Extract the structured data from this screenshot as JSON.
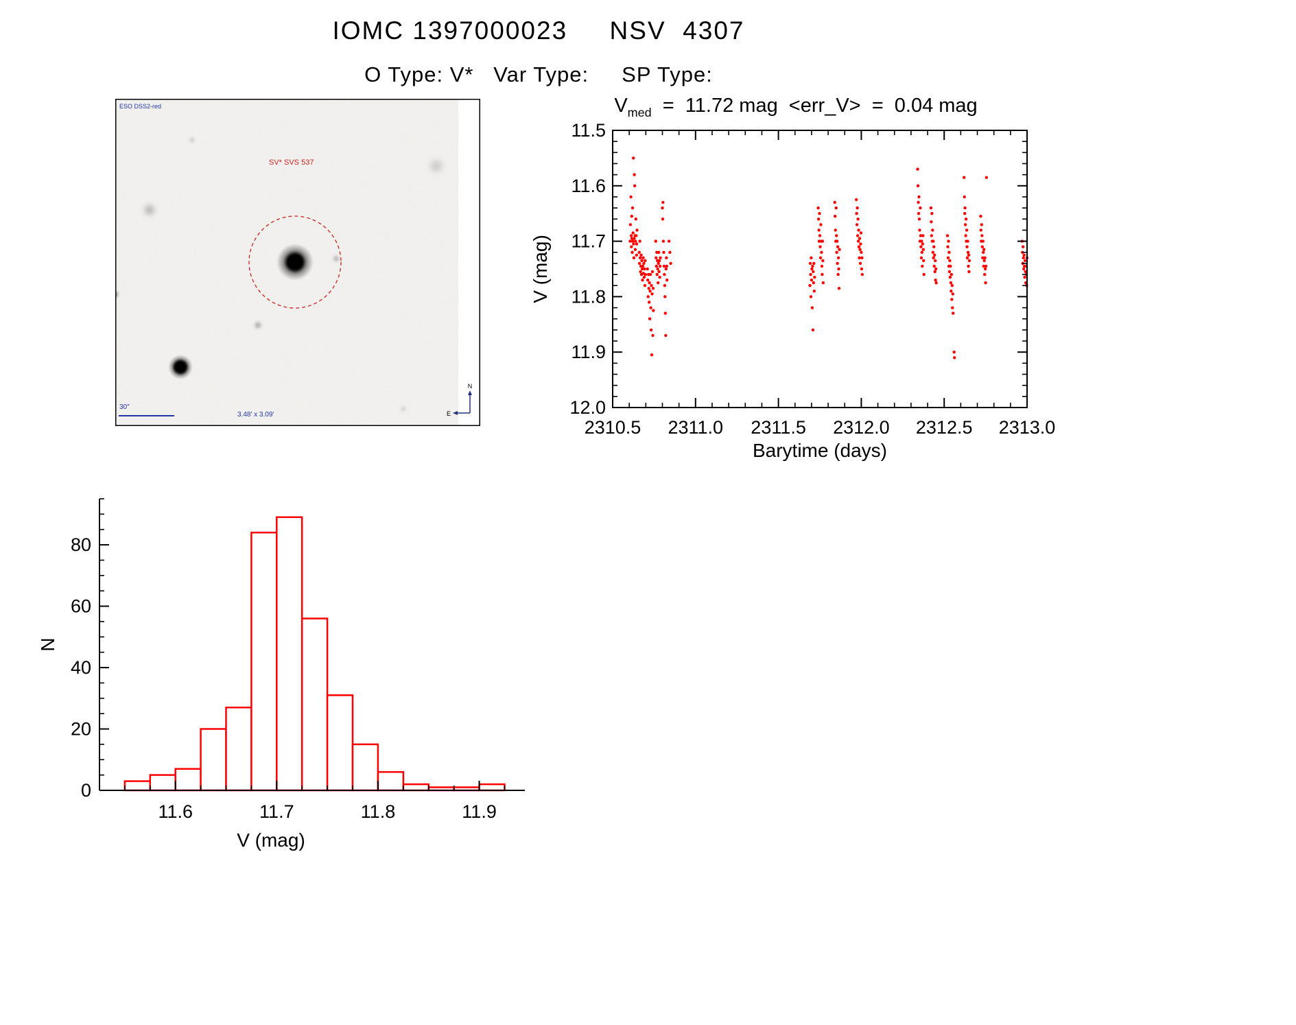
{
  "page": {
    "title": "IOMC 1397000023     NSV  4307",
    "subtitle": "O Type: V*   Var Type:     SP Type:"
  },
  "finding_chart": {
    "survey_label": "ESO DSS2-red",
    "star_label": "SV* SVS 537",
    "scale_label": "30\"",
    "fov_label": "3.48' x 3.09'",
    "compass_north": "N",
    "compass_east": "E"
  },
  "chart_data": [
    {
      "id": "lightcurve",
      "type": "scatter",
      "title": {
        "prefix": "V",
        "sub": "med",
        "rest": "  =  11.72 mag  <err_V>  =  0.04 mag"
      },
      "xlabel": "Barytime (days)",
      "ylabel": "V (mag)",
      "xlim": [
        2310.5,
        2313.0
      ],
      "ylim": [
        11.5,
        12.0
      ],
      "y_direction": "magnitude-increasing-downward",
      "xticks": [
        2310.5,
        2311.0,
        2311.5,
        2312.0,
        2312.5,
        2313.0
      ],
      "xtick_labels": [
        "2310.5",
        "2311.0",
        "2311.5",
        "2312.0",
        "2312.5",
        "2313.0"
      ],
      "yticks": [
        11.5,
        11.6,
        11.7,
        11.8,
        11.9,
        12.0
      ],
      "ytick_labels": [
        "11.5",
        "11.6",
        "11.7",
        "11.8",
        "11.9",
        "12.0"
      ],
      "x_minor_step": 0.1,
      "y_minor_step": 0.02,
      "marker_color": "#ff0000",
      "points": [
        [
          2310.605,
          11.7
        ],
        [
          2310.607,
          11.67
        ],
        [
          2310.61,
          11.62
        ],
        [
          2310.612,
          11.69
        ],
        [
          2310.613,
          11.71
        ],
        [
          2310.615,
          11.655
        ],
        [
          2310.616,
          11.695
        ],
        [
          2310.618,
          11.72
        ],
        [
          2310.62,
          11.64
        ],
        [
          2310.621,
          11.7
        ],
        [
          2310.623,
          11.685
        ],
        [
          2310.625,
          11.55
        ],
        [
          2310.626,
          11.705
        ],
        [
          2310.628,
          11.73
        ],
        [
          2310.63,
          11.695
        ],
        [
          2310.631,
          11.58
        ],
        [
          2310.633,
          11.6
        ],
        [
          2310.635,
          11.69
        ],
        [
          2310.636,
          11.715
        ],
        [
          2310.638,
          11.7
        ],
        [
          2310.64,
          11.66
        ],
        [
          2310.642,
          11.69
        ],
        [
          2310.644,
          11.725
        ],
        [
          2310.645,
          11.705
        ],
        [
          2310.647,
          11.68
        ],
        [
          2310.66,
          11.72
        ],
        [
          2310.662,
          11.74
        ],
        [
          2310.664,
          11.7
        ],
        [
          2310.666,
          11.73
        ],
        [
          2310.668,
          11.755
        ],
        [
          2310.67,
          11.745
        ],
        [
          2310.672,
          11.725
        ],
        [
          2310.674,
          11.76
        ],
        [
          2310.676,
          11.735
        ],
        [
          2310.678,
          11.75
        ],
        [
          2310.68,
          11.77
        ],
        [
          2310.682,
          11.745
        ],
        [
          2310.684,
          11.73
        ],
        [
          2310.686,
          11.758
        ],
        [
          2310.688,
          11.74
        ],
        [
          2310.69,
          11.765
        ],
        [
          2310.692,
          11.75
        ],
        [
          2310.694,
          11.78
        ],
        [
          2310.696,
          11.735
        ],
        [
          2310.698,
          11.76
        ],
        [
          2310.71,
          11.75
        ],
        [
          2310.712,
          11.77
        ],
        [
          2310.714,
          11.8
        ],
        [
          2310.716,
          11.76
        ],
        [
          2310.718,
          11.785
        ],
        [
          2310.72,
          11.81
        ],
        [
          2310.722,
          11.775
        ],
        [
          2310.724,
          11.84
        ],
        [
          2310.726,
          11.79
        ],
        [
          2310.728,
          11.76
        ],
        [
          2310.73,
          11.82
        ],
        [
          2310.732,
          11.86
        ],
        [
          2310.734,
          11.78
        ],
        [
          2310.736,
          11.905
        ],
        [
          2310.738,
          11.795
        ],
        [
          2310.74,
          11.755
        ],
        [
          2310.742,
          11.87
        ],
        [
          2310.744,
          11.785
        ],
        [
          2310.746,
          11.825
        ],
        [
          2310.76,
          11.7
        ],
        [
          2310.762,
          11.73
        ],
        [
          2310.764,
          11.745
        ],
        [
          2310.766,
          11.72
        ],
        [
          2310.768,
          11.76
        ],
        [
          2310.77,
          11.735
        ],
        [
          2310.772,
          11.75
        ],
        [
          2310.774,
          11.775
        ],
        [
          2310.776,
          11.74
        ],
        [
          2310.778,
          11.72
        ],
        [
          2310.78,
          11.755
        ],
        [
          2310.782,
          11.735
        ],
        [
          2310.784,
          11.765
        ],
        [
          2310.786,
          11.745
        ],
        [
          2310.788,
          11.73
        ],
        [
          2310.8,
          11.64
        ],
        [
          2310.802,
          11.66
        ],
        [
          2310.804,
          11.63
        ],
        [
          2310.806,
          11.7
        ],
        [
          2310.808,
          11.72
        ],
        [
          2310.81,
          11.745
        ],
        [
          2310.812,
          11.76
        ],
        [
          2310.814,
          11.78
        ],
        [
          2310.816,
          11.8
        ],
        [
          2310.818,
          11.83
        ],
        [
          2310.82,
          11.87
        ],
        [
          2310.822,
          11.75
        ],
        [
          2310.824,
          11.73
        ],
        [
          2310.826,
          11.745
        ],
        [
          2310.828,
          11.77
        ],
        [
          2310.84,
          11.7
        ],
        [
          2310.845,
          11.72
        ],
        [
          2310.85,
          11.74
        ],
        [
          2311.69,
          11.78
        ],
        [
          2311.692,
          11.74
        ],
        [
          2311.694,
          11.76
        ],
        [
          2311.696,
          11.8
        ],
        [
          2311.698,
          11.73
        ],
        [
          2311.7,
          11.77
        ],
        [
          2311.702,
          11.75
        ],
        [
          2311.704,
          11.82
        ],
        [
          2311.706,
          11.745
        ],
        [
          2311.708,
          11.86
        ],
        [
          2311.71,
          11.755
        ],
        [
          2311.712,
          11.775
        ],
        [
          2311.714,
          11.74
        ],
        [
          2311.716,
          11.79
        ],
        [
          2311.718,
          11.765
        ],
        [
          2311.74,
          11.64
        ],
        [
          2311.742,
          11.66
        ],
        [
          2311.744,
          11.68
        ],
        [
          2311.746,
          11.7
        ],
        [
          2311.748,
          11.65
        ],
        [
          2311.75,
          11.69
        ],
        [
          2311.752,
          11.71
        ],
        [
          2311.754,
          11.73
        ],
        [
          2311.756,
          11.67
        ],
        [
          2311.758,
          11.7
        ],
        [
          2311.76,
          11.72
        ],
        [
          2311.762,
          11.745
        ],
        [
          2311.764,
          11.76
        ],
        [
          2311.766,
          11.7
        ],
        [
          2311.768,
          11.735
        ],
        [
          2311.77,
          11.775
        ],
        [
          2311.84,
          11.63
        ],
        [
          2311.842,
          11.655
        ],
        [
          2311.844,
          11.68
        ],
        [
          2311.846,
          11.7
        ],
        [
          2311.848,
          11.64
        ],
        [
          2311.85,
          11.69
        ],
        [
          2311.852,
          11.72
        ],
        [
          2311.854,
          11.7
        ],
        [
          2311.856,
          11.74
        ],
        [
          2311.858,
          11.71
        ],
        [
          2311.86,
          11.76
        ],
        [
          2311.862,
          11.73
        ],
        [
          2311.864,
          11.75
        ],
        [
          2311.866,
          11.785
        ],
        [
          2311.868,
          11.715
        ],
        [
          2311.97,
          11.625
        ],
        [
          2311.972,
          11.65
        ],
        [
          2311.974,
          11.67
        ],
        [
          2311.976,
          11.64
        ],
        [
          2311.978,
          11.69
        ],
        [
          2311.98,
          11.66
        ],
        [
          2311.982,
          11.7
        ],
        [
          2311.984,
          11.68
        ],
        [
          2311.986,
          11.71
        ],
        [
          2311.988,
          11.73
        ],
        [
          2311.99,
          11.695
        ],
        [
          2311.992,
          11.715
        ],
        [
          2311.994,
          11.74
        ],
        [
          2311.996,
          11.705
        ],
        [
          2311.998,
          11.685
        ],
        [
          2312.0,
          11.72
        ],
        [
          2312.002,
          11.75
        ],
        [
          2312.004,
          11.73
        ],
        [
          2312.006,
          11.76
        ],
        [
          2312.34,
          11.57
        ],
        [
          2312.342,
          11.6
        ],
        [
          2312.344,
          11.63
        ],
        [
          2312.346,
          11.65
        ],
        [
          2312.348,
          11.62
        ],
        [
          2312.35,
          11.66
        ],
        [
          2312.352,
          11.68
        ],
        [
          2312.354,
          11.7
        ],
        [
          2312.356,
          11.64
        ],
        [
          2312.358,
          11.69
        ],
        [
          2312.36,
          11.71
        ],
        [
          2312.362,
          11.73
        ],
        [
          2312.364,
          11.7
        ],
        [
          2312.366,
          11.72
        ],
        [
          2312.368,
          11.745
        ],
        [
          2312.37,
          11.705
        ],
        [
          2312.372,
          11.69
        ],
        [
          2312.374,
          11.715
        ],
        [
          2312.376,
          11.735
        ],
        [
          2312.378,
          11.76
        ],
        [
          2312.42,
          11.64
        ],
        [
          2312.422,
          11.665
        ],
        [
          2312.424,
          11.69
        ],
        [
          2312.426,
          11.65
        ],
        [
          2312.428,
          11.7
        ],
        [
          2312.43,
          11.68
        ],
        [
          2312.432,
          11.72
        ],
        [
          2312.434,
          11.7
        ],
        [
          2312.436,
          11.73
        ],
        [
          2312.438,
          11.71
        ],
        [
          2312.44,
          11.745
        ],
        [
          2312.442,
          11.725
        ],
        [
          2312.444,
          11.755
        ],
        [
          2312.446,
          11.735
        ],
        [
          2312.448,
          11.77
        ],
        [
          2312.45,
          11.75
        ],
        [
          2312.452,
          11.775
        ],
        [
          2312.52,
          11.69
        ],
        [
          2312.522,
          11.71
        ],
        [
          2312.524,
          11.73
        ],
        [
          2312.526,
          11.7
        ],
        [
          2312.528,
          11.745
        ],
        [
          2312.53,
          11.72
        ],
        [
          2312.532,
          11.755
        ],
        [
          2312.534,
          11.735
        ],
        [
          2312.536,
          11.765
        ],
        [
          2312.538,
          11.745
        ],
        [
          2312.54,
          11.775
        ],
        [
          2312.542,
          11.79
        ],
        [
          2312.544,
          11.76
        ],
        [
          2312.546,
          11.805
        ],
        [
          2312.548,
          11.78
        ],
        [
          2312.55,
          11.82
        ],
        [
          2312.552,
          11.795
        ],
        [
          2312.554,
          11.83
        ],
        [
          2312.56,
          11.9
        ],
        [
          2312.562,
          11.91
        ],
        [
          2312.62,
          11.585
        ],
        [
          2312.622,
          11.62
        ],
        [
          2312.624,
          11.65
        ],
        [
          2312.626,
          11.64
        ],
        [
          2312.628,
          11.67
        ],
        [
          2312.63,
          11.69
        ],
        [
          2312.632,
          11.66
        ],
        [
          2312.634,
          11.7
        ],
        [
          2312.636,
          11.68
        ],
        [
          2312.638,
          11.71
        ],
        [
          2312.64,
          11.73
        ],
        [
          2312.642,
          11.7
        ],
        [
          2312.644,
          11.72
        ],
        [
          2312.646,
          11.745
        ],
        [
          2312.648,
          11.725
        ],
        [
          2312.65,
          11.755
        ],
        [
          2312.652,
          11.735
        ],
        [
          2312.72,
          11.655
        ],
        [
          2312.722,
          11.68
        ],
        [
          2312.724,
          11.7
        ],
        [
          2312.726,
          11.67
        ],
        [
          2312.728,
          11.69
        ],
        [
          2312.73,
          11.71
        ],
        [
          2312.732,
          11.73
        ],
        [
          2312.734,
          11.7
        ],
        [
          2312.736,
          11.72
        ],
        [
          2312.738,
          11.745
        ],
        [
          2312.74,
          11.715
        ],
        [
          2312.742,
          11.735
        ],
        [
          2312.744,
          11.76
        ],
        [
          2312.746,
          11.73
        ],
        [
          2312.748,
          11.75
        ],
        [
          2312.75,
          11.775
        ],
        [
          2312.752,
          11.745
        ],
        [
          2312.755,
          11.585
        ],
        [
          2312.97,
          11.7
        ],
        [
          2312.972,
          11.72
        ],
        [
          2312.974,
          11.74
        ],
        [
          2312.976,
          11.71
        ],
        [
          2312.978,
          11.73
        ],
        [
          2312.98,
          11.75
        ],
        [
          2312.982,
          11.725
        ],
        [
          2312.984,
          11.745
        ],
        [
          2312.986,
          11.765
        ],
        [
          2312.988,
          11.735
        ],
        [
          2312.99,
          11.755
        ],
        [
          2312.992,
          11.775
        ],
        [
          2312.994,
          11.745
        ],
        [
          2312.996,
          11.76
        ],
        [
          2312.998,
          11.78
        ],
        [
          2313.0,
          11.73
        ]
      ]
    },
    {
      "id": "histogram",
      "type": "histogram",
      "xlabel": "V (mag)",
      "ylabel": "N",
      "bin_start": 11.55,
      "bin_width": 0.025,
      "counts": [
        3,
        5,
        7,
        20,
        27,
        84,
        89,
        56,
        31,
        15,
        6,
        2,
        1,
        1,
        2
      ],
      "xlim": [
        11.525,
        11.945
      ],
      "ylim": [
        0,
        95
      ],
      "xticks": [
        11.6,
        11.7,
        11.8,
        11.9
      ],
      "xtick_labels": [
        "11.6",
        "11.7",
        "11.8",
        "11.9"
      ],
      "yticks": [
        0,
        20,
        40,
        60,
        80
      ],
      "ytick_labels": [
        "0",
        "20",
        "40",
        "60",
        "80"
      ],
      "x_minor_step": 0.025,
      "y_minor_step": 5,
      "bar_color": "#ff0000"
    }
  ]
}
